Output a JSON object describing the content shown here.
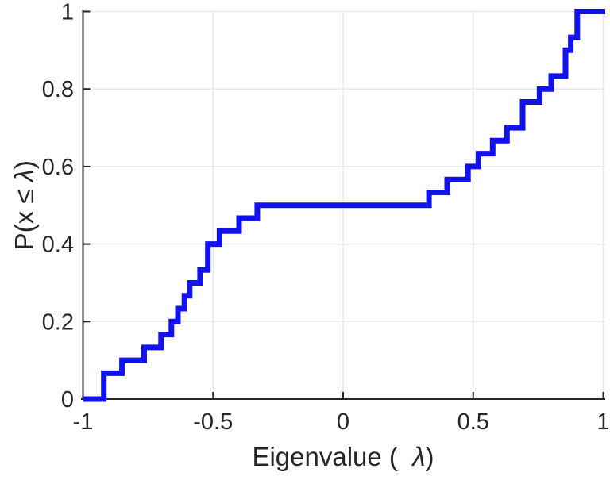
{
  "figure": {
    "background": "#ffffff",
    "title": ""
  },
  "chart_data": {
    "type": "line",
    "style": "stairs-ecdf",
    "title": "",
    "xlabel": "Eigenvalue (  λ)",
    "ylabel": "P(x ≤ λ)",
    "xlim": [
      -1,
      1
    ],
    "ylim": [
      0,
      1
    ],
    "grid": true,
    "legend": null,
    "xticks": {
      "values": [
        -1,
        -0.5,
        0,
        0.5,
        1
      ],
      "labels": [
        "-1",
        "-0.5",
        "0",
        "0.5",
        "1"
      ]
    },
    "yticks": {
      "values": [
        0,
        0.2,
        0.4,
        0.6,
        0.8,
        1
      ],
      "labels": [
        "0",
        "0.2",
        "0.4",
        "0.6",
        "0.8",
        "1"
      ]
    },
    "n_points": 30,
    "eigenvalues": [
      -0.92,
      -0.92,
      -0.85,
      -0.765,
      -0.7,
      -0.66,
      -0.635,
      -0.61,
      -0.59,
      -0.55,
      -0.52,
      -0.52,
      -0.475,
      -0.4,
      -0.33,
      0.33,
      0.4,
      0.48,
      0.52,
      0.575,
      0.63,
      0.69,
      0.69,
      0.755,
      0.8,
      0.855,
      0.855,
      0.875,
      0.9,
      0.9
    ],
    "cdf_step": 0.0333,
    "flat_region": {
      "from": -0.33,
      "to": 0.33,
      "level": 0.5
    },
    "colors": {
      "line": "#1212ef",
      "axis": "#262626",
      "grid": "#e8e8e8",
      "text": "#262626"
    },
    "line_width": 7
  }
}
